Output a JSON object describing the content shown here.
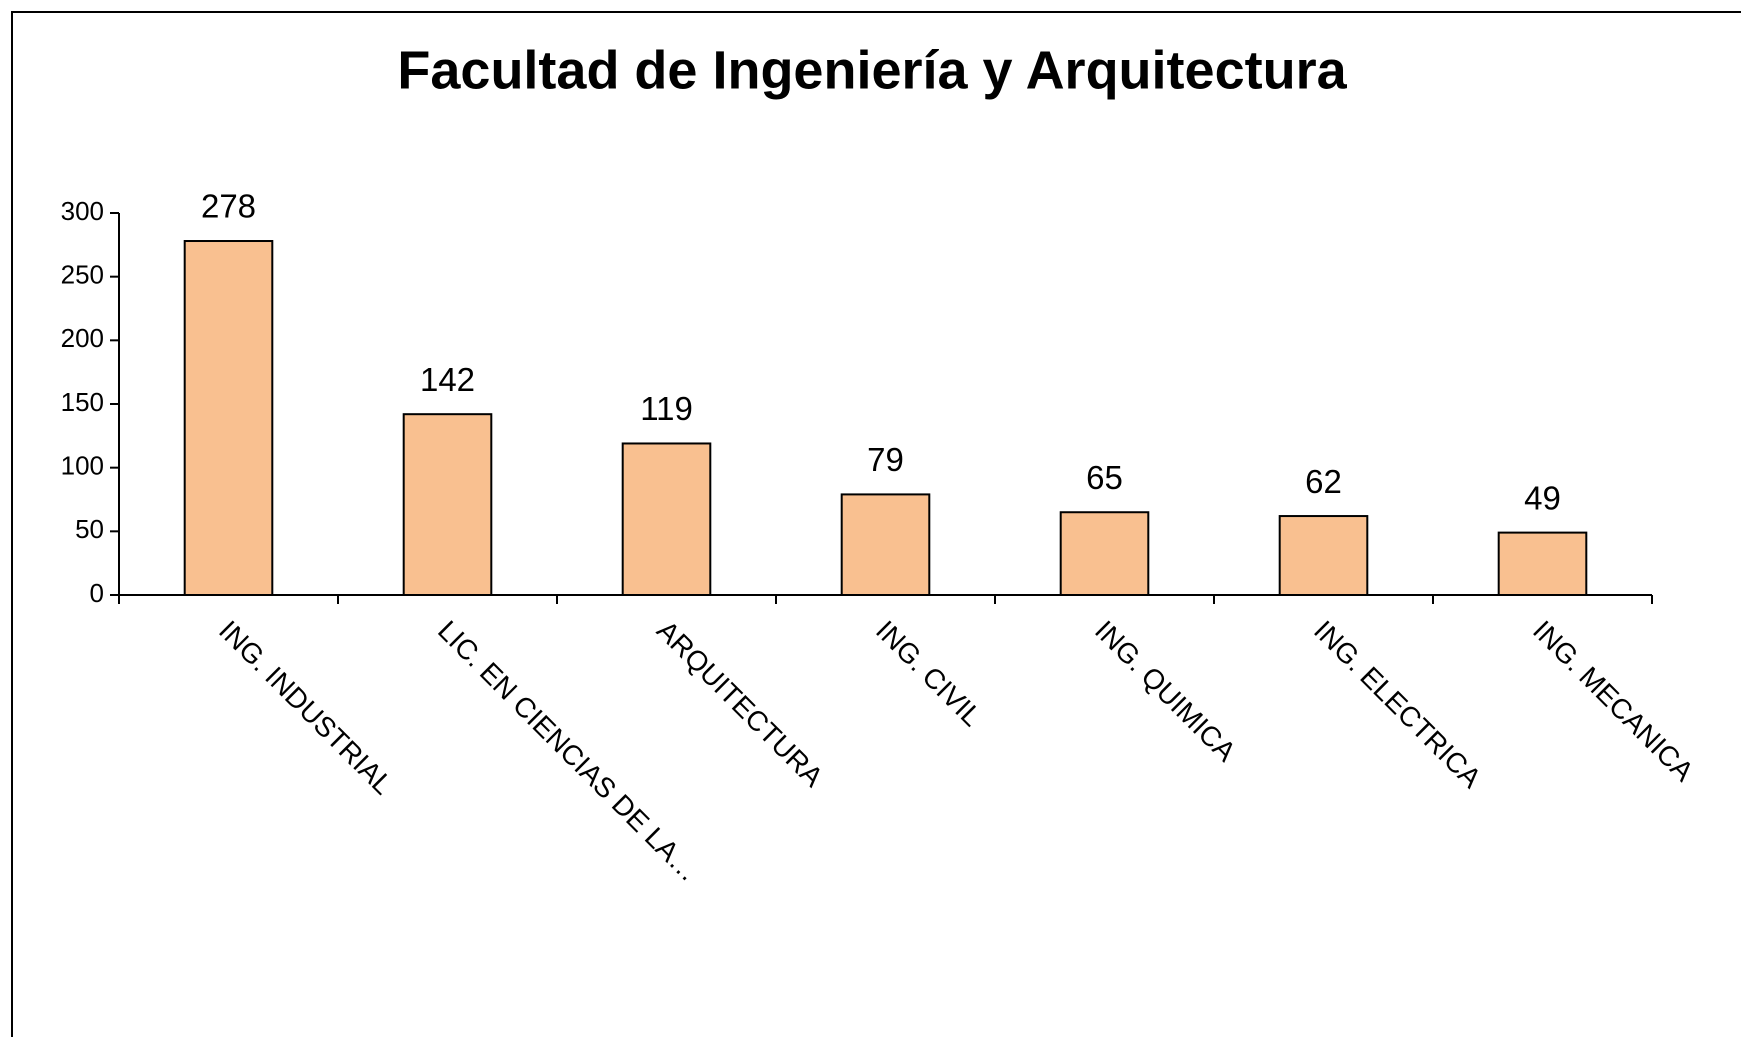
{
  "chart_data": {
    "type": "bar",
    "title": "Facultad de Ingeniería y Arquitectura",
    "categories": [
      "ING. INDUSTRIAL",
      "LIC. EN CIENCIAS DE LA…",
      "ARQUITECTURA",
      "ING. CIVIL",
      "ING. QUIMICA",
      "ING. ELECTRICA",
      "ING. MECANICA"
    ],
    "values": [
      278,
      142,
      119,
      79,
      65,
      62,
      49
    ],
    "color": "#f9c090",
    "ylim": [
      0,
      300
    ],
    "yticks": [
      0,
      50,
      100,
      150,
      200,
      250,
      300
    ],
    "grid": false
  }
}
